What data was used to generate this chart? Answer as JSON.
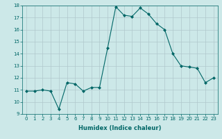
{
  "x": [
    0,
    1,
    2,
    3,
    4,
    5,
    6,
    7,
    8,
    9,
    10,
    11,
    12,
    13,
    14,
    15,
    16,
    17,
    18,
    19,
    20,
    21,
    22,
    23
  ],
  "y": [
    10.9,
    10.9,
    11.0,
    10.9,
    9.4,
    11.6,
    11.5,
    10.9,
    11.2,
    11.2,
    14.5,
    17.9,
    17.2,
    17.1,
    17.8,
    17.3,
    16.5,
    16.0,
    14.0,
    13.0,
    12.9,
    12.8,
    11.6,
    12.0
  ],
  "xlim": [
    -0.5,
    23.5
  ],
  "ylim": [
    9,
    18
  ],
  "yticks": [
    9,
    10,
    11,
    12,
    13,
    14,
    15,
    16,
    17,
    18
  ],
  "xticks": [
    0,
    1,
    2,
    3,
    4,
    5,
    6,
    7,
    8,
    9,
    10,
    11,
    12,
    13,
    14,
    15,
    16,
    17,
    18,
    19,
    20,
    21,
    22,
    23
  ],
  "xlabel": "Humidex (Indice chaleur)",
  "line_color": "#006666",
  "marker": "D",
  "marker_size": 2,
  "bg_color": "#cce8e8",
  "grid_color": "#b0c8cc",
  "xlabel_fontsize": 6,
  "tick_fontsize": 5
}
